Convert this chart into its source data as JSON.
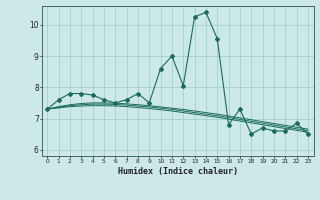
{
  "xlabel": "Humidex (Indice chaleur)",
  "bg_color": "#cce8e8",
  "line_color": "#1a6b5a",
  "grid_color": "#99cccc",
  "xlim": [
    -0.5,
    23.5
  ],
  "ylim": [
    5.8,
    10.6
  ],
  "xticks": [
    0,
    1,
    2,
    3,
    4,
    5,
    6,
    7,
    8,
    9,
    10,
    11,
    12,
    13,
    14,
    15,
    16,
    17,
    18,
    19,
    20,
    21,
    22,
    23
  ],
  "yticks": [
    6,
    7,
    8,
    9,
    10
  ],
  "main_series": [
    7.3,
    7.6,
    7.8,
    7.8,
    7.75,
    7.6,
    7.5,
    7.6,
    7.8,
    7.5,
    8.6,
    9.0,
    8.05,
    10.25,
    10.4,
    9.55,
    6.8,
    7.3,
    6.5,
    6.7,
    6.6,
    6.6,
    6.85,
    6.5
  ],
  "trend1": [
    7.3,
    7.38,
    7.44,
    7.48,
    7.5,
    7.5,
    7.49,
    7.47,
    7.44,
    7.41,
    7.37,
    7.33,
    7.29,
    7.24,
    7.19,
    7.14,
    7.08,
    7.02,
    6.96,
    6.9,
    6.84,
    6.78,
    6.72,
    6.66
  ],
  "trend2": [
    7.3,
    7.36,
    7.41,
    7.44,
    7.46,
    7.46,
    7.45,
    7.43,
    7.4,
    7.37,
    7.33,
    7.29,
    7.24,
    7.19,
    7.14,
    7.09,
    7.03,
    6.97,
    6.91,
    6.85,
    6.79,
    6.73,
    6.67,
    6.61
  ],
  "trend3": [
    7.3,
    7.34,
    7.38,
    7.4,
    7.41,
    7.41,
    7.4,
    7.38,
    7.35,
    7.32,
    7.28,
    7.24,
    7.19,
    7.14,
    7.09,
    7.04,
    6.98,
    6.92,
    6.86,
    6.8,
    6.74,
    6.68,
    6.62,
    6.56
  ]
}
